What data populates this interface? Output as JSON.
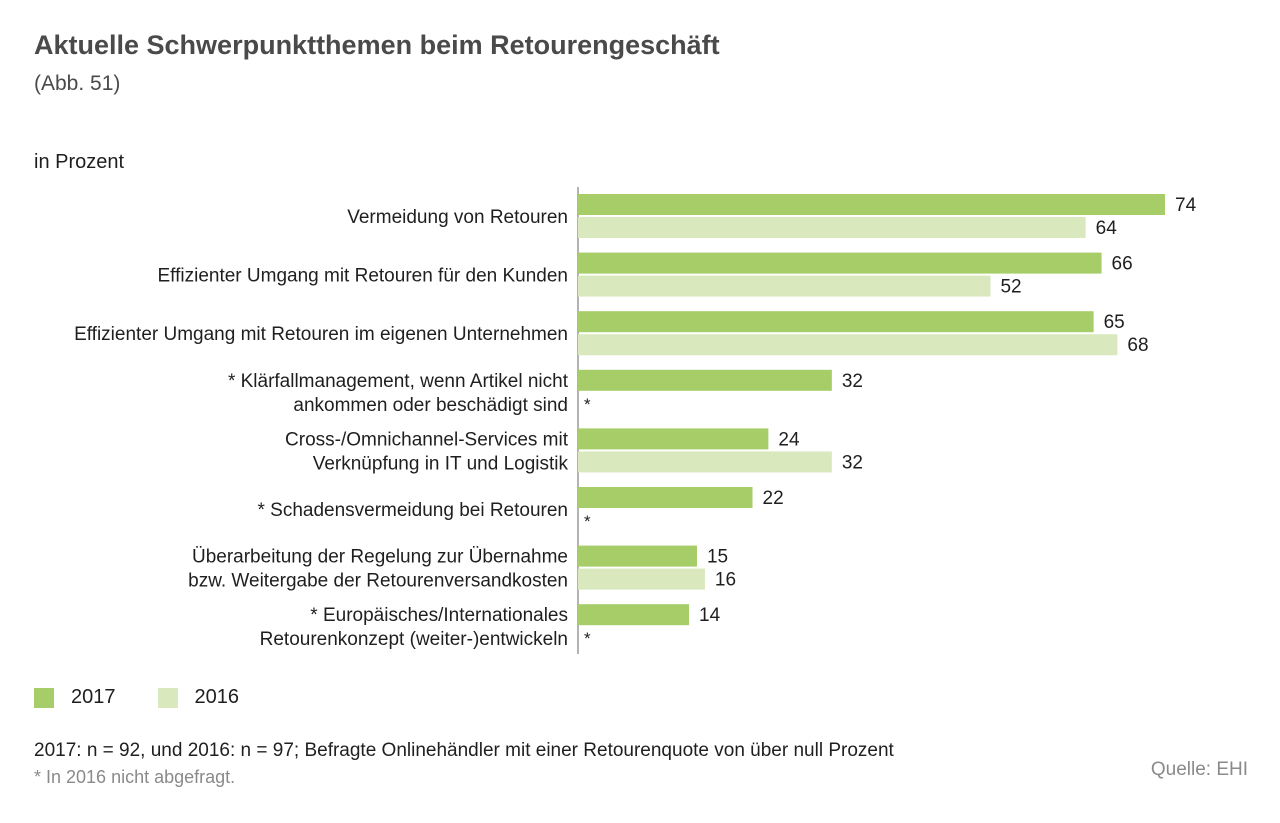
{
  "title": "Aktuelle Schwerpunktthemen beim Retourengeschäft",
  "subtitle": "(Abb. 51)",
  "unit_label": "in Prozent",
  "colors": {
    "series_2017": "#a6cd68",
    "series_2016": "#d9e9bd",
    "axis": "#8a8a8a"
  },
  "chart_data": {
    "type": "bar",
    "orientation": "horizontal",
    "categories": [
      [
        "Vermeidung von Retouren"
      ],
      [
        "Effizienter Umgang mit Retouren für den Kunden"
      ],
      [
        "Effizienter Umgang mit Retouren im eigenen Unternehmen"
      ],
      [
        "* Klärfallmanagement, wenn Artikel nicht",
        "ankommen oder beschädigt sind"
      ],
      [
        "Cross-/Omnichannel-Services mit",
        "Verknüpfung in IT und Logistik"
      ],
      [
        "* Schadensvermeidung bei Retouren"
      ],
      [
        "Überarbeitung der Regelung zur Übernahme",
        "bzw. Weitergabe der Retourenversandkosten"
      ],
      [
        "* Europäisches/Internationales",
        "Retourenkonzept (weiter-)entwickeln"
      ]
    ],
    "series": [
      {
        "name": "2017",
        "values": [
          74,
          66,
          65,
          32,
          24,
          22,
          15,
          14
        ]
      },
      {
        "name": "2016",
        "values": [
          64,
          52,
          68,
          null,
          32,
          null,
          16,
          null
        ]
      }
    ],
    "missing_marker": "*",
    "unit": "Prozent",
    "xlim": [
      0,
      74
    ]
  },
  "legend": [
    {
      "label": "2017"
    },
    {
      "label": "2016"
    }
  ],
  "note": "2017: n = 92, und 2016: n = 97; Befragte Onlinehändler mit einer Retourenquote von über null Prozent",
  "footnote": "* In 2016 nicht abgefragt.",
  "source": "Quelle: EHI"
}
